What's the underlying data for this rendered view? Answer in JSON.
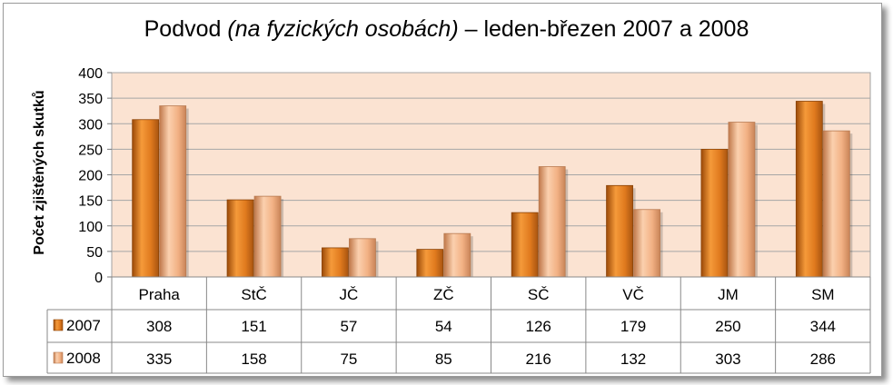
{
  "chart_data": {
    "type": "bar",
    "title_parts": {
      "pre": "Podvod ",
      "italic": "(na fyzických osobách)",
      "post": "  – leden-březen 2007 a 2008"
    },
    "xlabel": "",
    "ylabel": "Počet zjištěných skutků",
    "ylim": [
      0,
      400
    ],
    "y_ticks": [
      "0",
      "50",
      "100",
      "150",
      "200",
      "250",
      "300",
      "350",
      "400"
    ],
    "categories": [
      "Praha",
      "StČ",
      "JČ",
      "ZČ",
      "SČ",
      "VČ",
      "JM",
      "SM"
    ],
    "series": [
      {
        "name": "2007",
        "values": [
          308,
          151,
          57,
          54,
          126,
          179,
          250,
          344
        ],
        "color": "#e0781c"
      },
      {
        "name": "2008",
        "values": [
          335,
          158,
          75,
          85,
          216,
          132,
          303,
          286
        ],
        "color": "#f4b386"
      }
    ],
    "legend": "data-table-left",
    "grid": true,
    "plot_background": "#fbe3d2"
  }
}
